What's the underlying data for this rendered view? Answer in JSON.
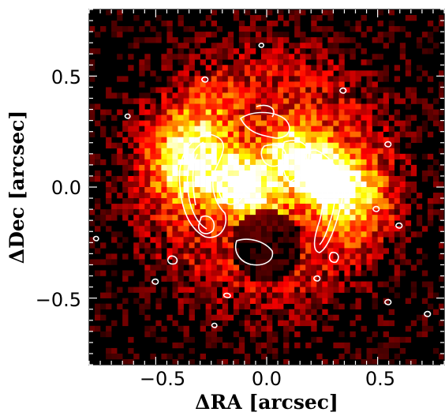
{
  "figure": {
    "xlabel": "ΔRA [arcsec]",
    "ylabel": "ΔDec [arcsec]",
    "xlim": [
      -0.8,
      0.8
    ],
    "ylim": [
      -0.8,
      0.8
    ],
    "x_ticks": [
      {
        "value": -0.5,
        "label": "−0.5"
      },
      {
        "value": 0.0,
        "label": "0.0"
      },
      {
        "value": 0.5,
        "label": "0.5"
      }
    ],
    "y_ticks": [
      {
        "value": 0.5,
        "label": "0.5"
      },
      {
        "value": 0.0,
        "label": "0.0"
      },
      {
        "value": -0.5,
        "label": "−0.5"
      }
    ],
    "colormap": "hot (black → red → orange → yellow-white)",
    "contour_color": "#ffffff",
    "background_color": "#000000"
  }
}
